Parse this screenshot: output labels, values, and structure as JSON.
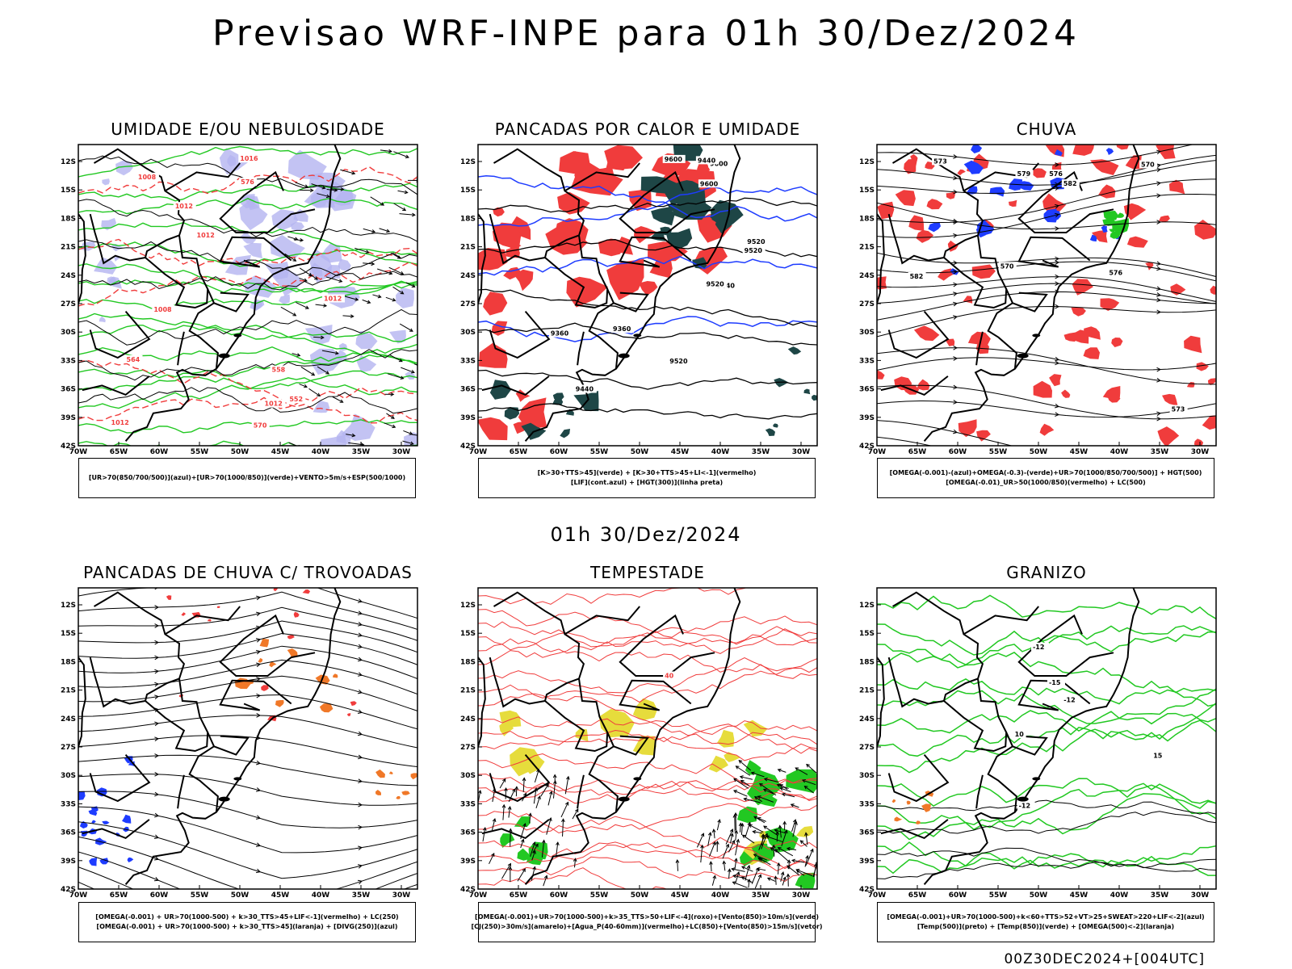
{
  "header": {
    "title": "Previsao WRF-INPE  para 01h 30/Dez/2024",
    "mid_title": "01h 30/Dez/2024",
    "footer": "00Z30DEC2024+[004UTC]"
  },
  "axes": {
    "lat_labels": [
      "12S",
      "15S",
      "18S",
      "21S",
      "24S",
      "27S",
      "30S",
      "33S",
      "36S",
      "39S",
      "42S"
    ],
    "lon_labels": [
      "70W",
      "65W",
      "60W",
      "55W",
      "50W",
      "45W",
      "40W",
      "35W",
      "30W"
    ]
  },
  "colors": {
    "red": "#f03c3c",
    "green": "#22c822",
    "blue": "#1e3cff",
    "lavender": "#b4b4f0",
    "darkgreen": "#1e4646",
    "orange": "#f07828",
    "yellow": "#e6dc3c",
    "black": "#000000"
  },
  "panels": [
    {
      "title": "UMIDADE E/OU NEBULOSIDADE",
      "legend": [
        "[UR>70(850/700/500)](azul)+[UR>70(1000/850)](verde)+VENTO>5m/s+ESP(500/1000)"
      ],
      "contour_labels": [
        "1012",
        "1012",
        "1008",
        "1012",
        "1012",
        "1008",
        "1012",
        "1016",
        "570",
        "564",
        "576",
        "558",
        "552"
      ]
    },
    {
      "title": "PANCADAS POR CALOR E UMIDADE",
      "legend": [
        "[K>30+TTS>45](verde) + [K>30+TTS>45+LI<-1](vermelho)",
        "[LIF](cont.azul) + [HGT(300)](linha preta)"
      ],
      "contour_labels": [
        "9600",
        "9600",
        "9520",
        "9600",
        "9520",
        "9520",
        "9440",
        "9520",
        "9440",
        "9360",
        "9360",
        "9440"
      ]
    },
    {
      "title": "CHUVA",
      "legend": [
        "[OMEGA(-0.001)-(azul)+OMEGA(-0.3)-(verde)+UR>70(1000/850/700/500)] + HGT(500)",
        "[OMEGA(-0.01)_UR>50(1000/850)(vermelho) + LC(500)"
      ],
      "contour_labels": [
        "582",
        "579",
        "576",
        "573",
        "570",
        "582",
        "576",
        "573",
        "570"
      ]
    },
    {
      "title": "PANCADAS DE CHUVA C/ TROVOADAS",
      "legend": [
        "[OMEGA(-0.001) + UR>70(1000-500) + k>30_TTS>45+LIF<-1](vermelho) + LC(250)",
        "[OMEGA(-0.001) + UR>70(1000-500) + k>30_TTS>45](laranja) + [DIVG(250)](azul)"
      ],
      "contour_labels": []
    },
    {
      "title": "TEMPESTADE",
      "legend": [
        "[OMEGA(-0.001)+UR>70(1000-500)+k>35_TTS>50+LIF<-4](roxo)+[Vento(850)>10m/s](verde)",
        "[CJ(250)>30m/s](amarelo)+[Agua_P(40-60mm)](vermelho)+LC(850)+[Vento(850)>15m/s](vetor)"
      ],
      "contour_labels": [
        "40"
      ]
    },
    {
      "title": "GRANIZO",
      "legend": [
        "[OMEGA(-0.001)+UR>70(1000-500)+k<60+TTS>52+VT>25+SWEAT>220+LIF<-2](azul)",
        "[Temp(500)](preto) + [Temp(850)](verde) + [OMEGA(500)<-2](laranja)"
      ],
      "contour_labels": [
        "-12",
        "-12",
        "-15",
        "-12",
        "15",
        "10"
      ]
    }
  ]
}
